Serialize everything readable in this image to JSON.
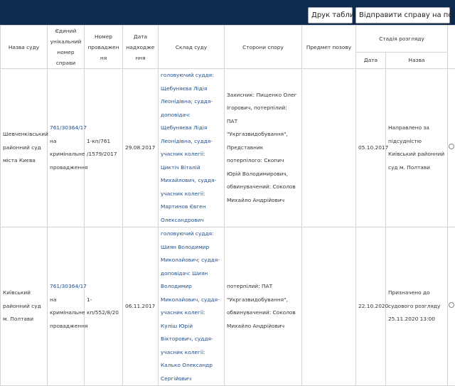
{
  "toolbar": {
    "print_label": "Друк таблиці",
    "send_label": "Відправити справу на пошту"
  },
  "table": {
    "headers": {
      "court": "Назва суду",
      "unique_number": "Єдиний унікальний номер справи",
      "proceeding_number": "Номер провадження",
      "date_received": "Дата надходження",
      "composition": "Склад суду",
      "parties": "Сторони спору",
      "subject": "Предмет позову",
      "stage": "Стадія розгляду",
      "stage_date": "Дата",
      "stage_name": "Назва"
    },
    "rows": [
      {
        "court": "Шевченківський районний суд міста Києва",
        "unique_number": "761/30364/17",
        "case_type": "на кримінальне провадження",
        "proceeding_number": "1-кп/761 /1579/2017",
        "date_received": "29.08.2017",
        "composition": "головуючий суддя: Щебуняєва Лідія Леонідівна; суддя-доповідач: Щебуняєва Лідія Леонідівна, суддя-учасник колегії: Циктіч Віталій Михайлович, суддя-учасник колегії: Мартинов Євген Олександрович",
        "parties": "Захисник: Пищенко Олег Ігорович, потерпілий: ПАТ \"Укргазвидобування\", Представник потерпілого: Скопич Юрій Володимирович, обвинувачений: Соколов Михайло Андрійович",
        "subject": "",
        "stage_date": "05.10.2017",
        "stage_name": "Направлено за підсудністю Київський районний суд м. Полтави"
      },
      {
        "court": "Київський районний суд м. Полтави",
        "unique_number": "761/30364/17",
        "case_type": "на кримінальне провадження",
        "proceeding_number": "1-кп/552/8/20",
        "date_received": "06.11.2017",
        "composition": "головуючий суддя: Шиян Володимир Миколайович; суддя-доповідач: Шиян Володимир Миколайович, суддя-учасник колегії: Куліш Юрій Вікторович, суддя-учасник колегії: Калько Олександр Сергійович",
        "parties": "потерпілий: ПАТ \"Укргазвидобування\", обвинувачений: Соколов Михайло Андрійович",
        "subject": "",
        "stage_date": "22.10.2020",
        "stage_name": "Призначено до судового розгляду 25.11.2020 13:00"
      }
    ]
  }
}
